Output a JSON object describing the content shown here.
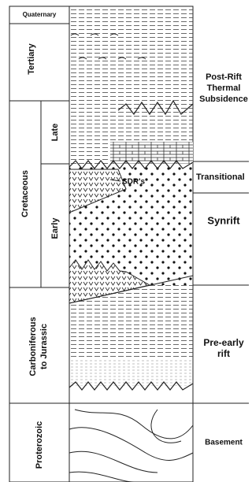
{
  "periods": {
    "quaternary": "Quaternary",
    "tertiary": "Tertiary",
    "cretaceous": "Cretaceous",
    "late": "Late",
    "early": "Early",
    "carboniferous": [
      "Carboniferous",
      "to Jurassic"
    ],
    "proterozoic": "Proterozoic"
  },
  "stages": {
    "post_rift": [
      "Post-Rift",
      "Thermal",
      "Subsidence"
    ],
    "transitional": "Transitional",
    "synrift": "Synrift",
    "pre_early_rift": [
      "Pre-early",
      "rift"
    ],
    "basement": "Basement"
  },
  "annotation": "SDR's"
}
